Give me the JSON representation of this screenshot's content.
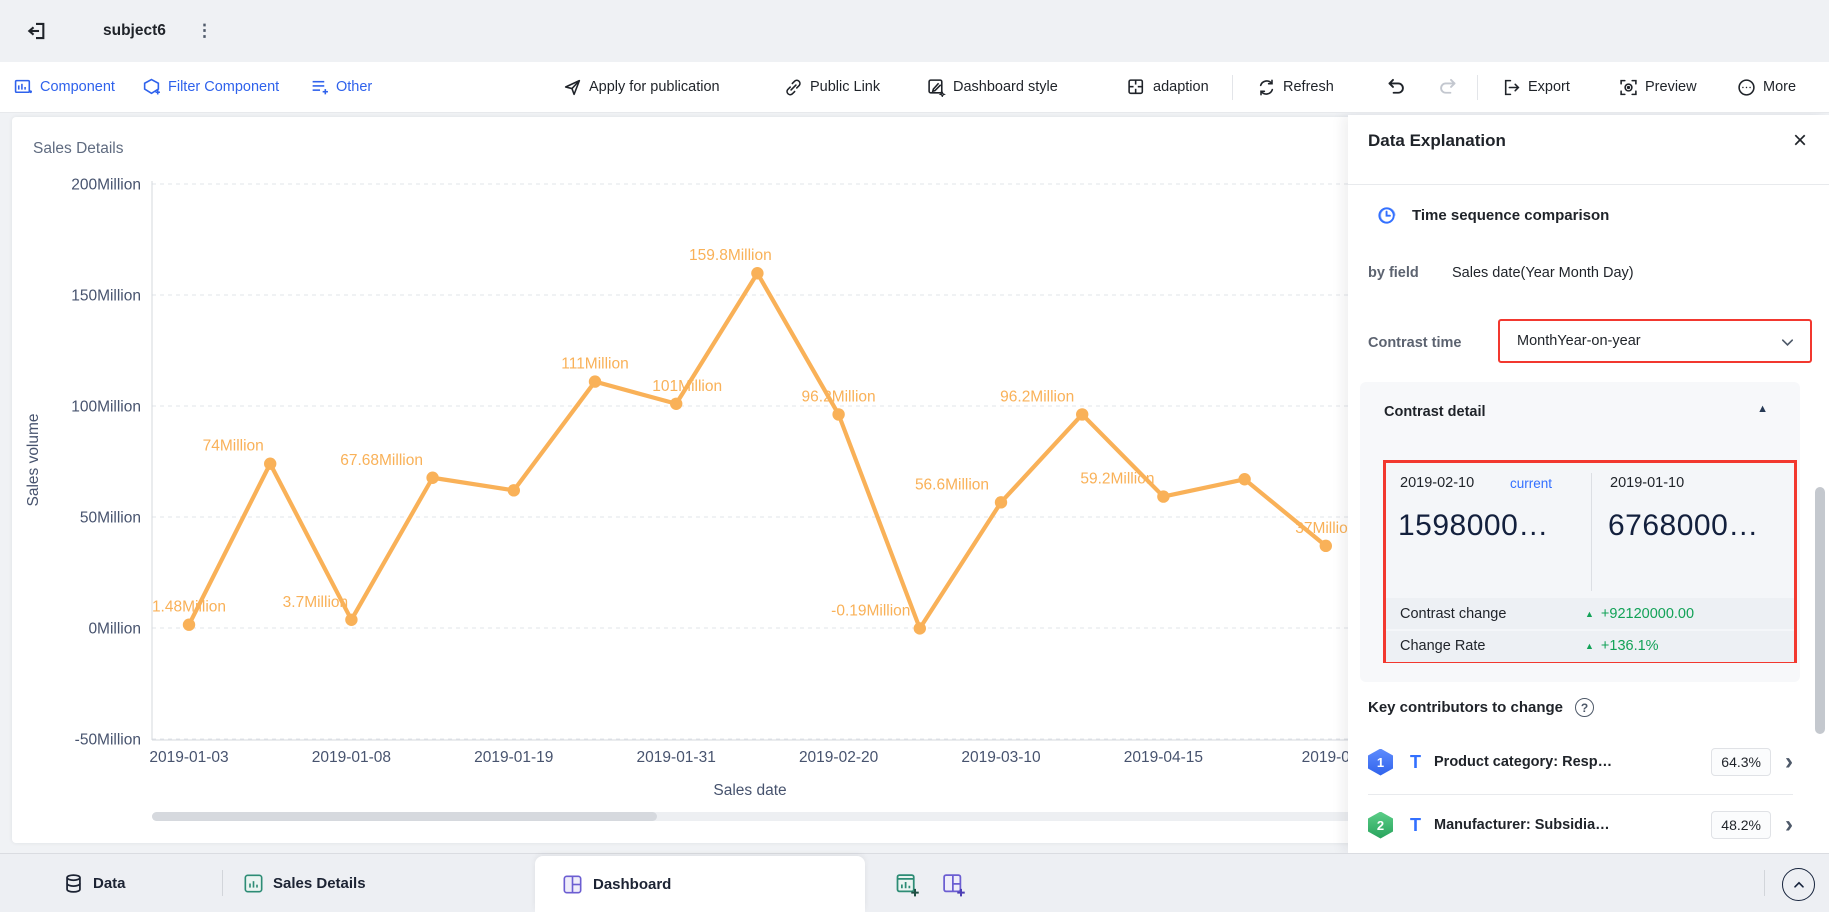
{
  "topbar": {
    "title": "subject6"
  },
  "toolbar": {
    "component": "Component",
    "filter_component": "Filter Component",
    "other": "Other",
    "apply": "Apply for publication",
    "public_link": "Public Link",
    "dashboard_style": "Dashboard style",
    "adaption": "adaption",
    "refresh": "Refresh",
    "export": "Export",
    "preview": "Preview",
    "more": "More"
  },
  "chart_card": {
    "title": "Sales Details"
  },
  "chart_data": {
    "type": "line",
    "title": "Sales Details",
    "xlabel": "Sales date",
    "ylabel": "Sales volume",
    "unit": "Million",
    "series": [
      {
        "name": "Sales volume",
        "values": [
          1.48,
          74,
          3.7,
          67.68,
          62,
          111,
          101,
          159.8,
          96.2,
          -0.19,
          56.6,
          96.2,
          59.2,
          67,
          37
        ]
      }
    ],
    "point_labels": [
      "1.48Million",
      "74Million",
      "3.7Million",
      "67.68Million",
      "",
      "111Million",
      "101Million",
      "159.8Million",
      "96.2Million",
      "-0.19Million",
      "56.6Million",
      "96.2Million",
      "59.2Million",
      "",
      "37Million"
    ],
    "label_dx": [
      0,
      -37,
      -36,
      -51,
      0,
      0,
      11,
      -27,
      0,
      -49,
      -49,
      -45,
      -46,
      0,
      0
    ],
    "x_tick_indices": [
      0,
      2,
      4,
      6,
      8,
      10,
      12,
      14
    ],
    "x_tick_labels": [
      "2019-01-03",
      "2019-01-08",
      "2019-01-19",
      "2019-01-31",
      "2019-02-20",
      "2019-03-10",
      "2019-04-15",
      "2019-0"
    ],
    "y_ticks": [
      {
        "v": 200,
        "label": "200Million"
      },
      {
        "v": 150,
        "label": "150Million"
      },
      {
        "v": 100,
        "label": "100Million"
      },
      {
        "v": 50,
        "label": "50Million"
      },
      {
        "v": 0,
        "label": "0Million"
      },
      {
        "v": -50,
        "label": "-50Million"
      }
    ],
    "ylim": [
      -50,
      200
    ],
    "grid": "horizontal-dashed",
    "legend": "none",
    "line_color": "#f9b158"
  },
  "panel": {
    "title": "Data Explanation",
    "section_title": "Time sequence comparison",
    "by_field_label": "by field",
    "by_field_value": "Sales date(Year Month Day)",
    "contrast_time_label": "Contrast time",
    "contrast_time_value": "MonthYear-on-year",
    "contrast_detail": {
      "title": "Contrast detail",
      "current_date": "2019-02-10",
      "current_tag": "current",
      "current_value": "1598000…",
      "compare_date": "2019-01-10",
      "compare_value": "6768000…",
      "rows": [
        {
          "label": "Contrast change",
          "value": "+92120000.00"
        },
        {
          "label": "Change Rate",
          "value": "+136.1%"
        }
      ]
    },
    "contributors": {
      "title": "Key contributors to change",
      "items": [
        {
          "rank": "1",
          "type_icon": "T",
          "label": "Product category: Resp…",
          "pct": "64.3%"
        },
        {
          "rank": "2",
          "type_icon": "T",
          "label": "Manufacturer: Subsidia…",
          "pct": "48.2%"
        }
      ]
    }
  },
  "bottombar": {
    "data_label": "Data",
    "sales_label": "Sales Details",
    "dashboard_label": "Dashboard"
  },
  "glyphs": {
    "kebab": "⋮",
    "close": "×",
    "caret_up": "▲",
    "up_triangle": "▲",
    "help": "?",
    "chevron_right": "›"
  },
  "colors": {
    "c-blue": "#2f62ec",
    "c-link": "#3370ff",
    "c-orange": "#f9b158",
    "c-green": "#12a257",
    "c-red": "#f2382f",
    "c-dark": "#1f2329",
    "c-gray": "#646a73",
    "c-axis": "#47536e",
    "c-navy": "#13203d",
    "c-canvas": "#f0f2f5",
    "c-topbar": "#eff1f4",
    "c-bottombar": "#edeff3",
    "c-cardgray": "#f7f8fa",
    "c-rowgray": "#edf0f4",
    "c-teal": "#2d8c75",
    "c-purple": "#6c5ed2"
  }
}
